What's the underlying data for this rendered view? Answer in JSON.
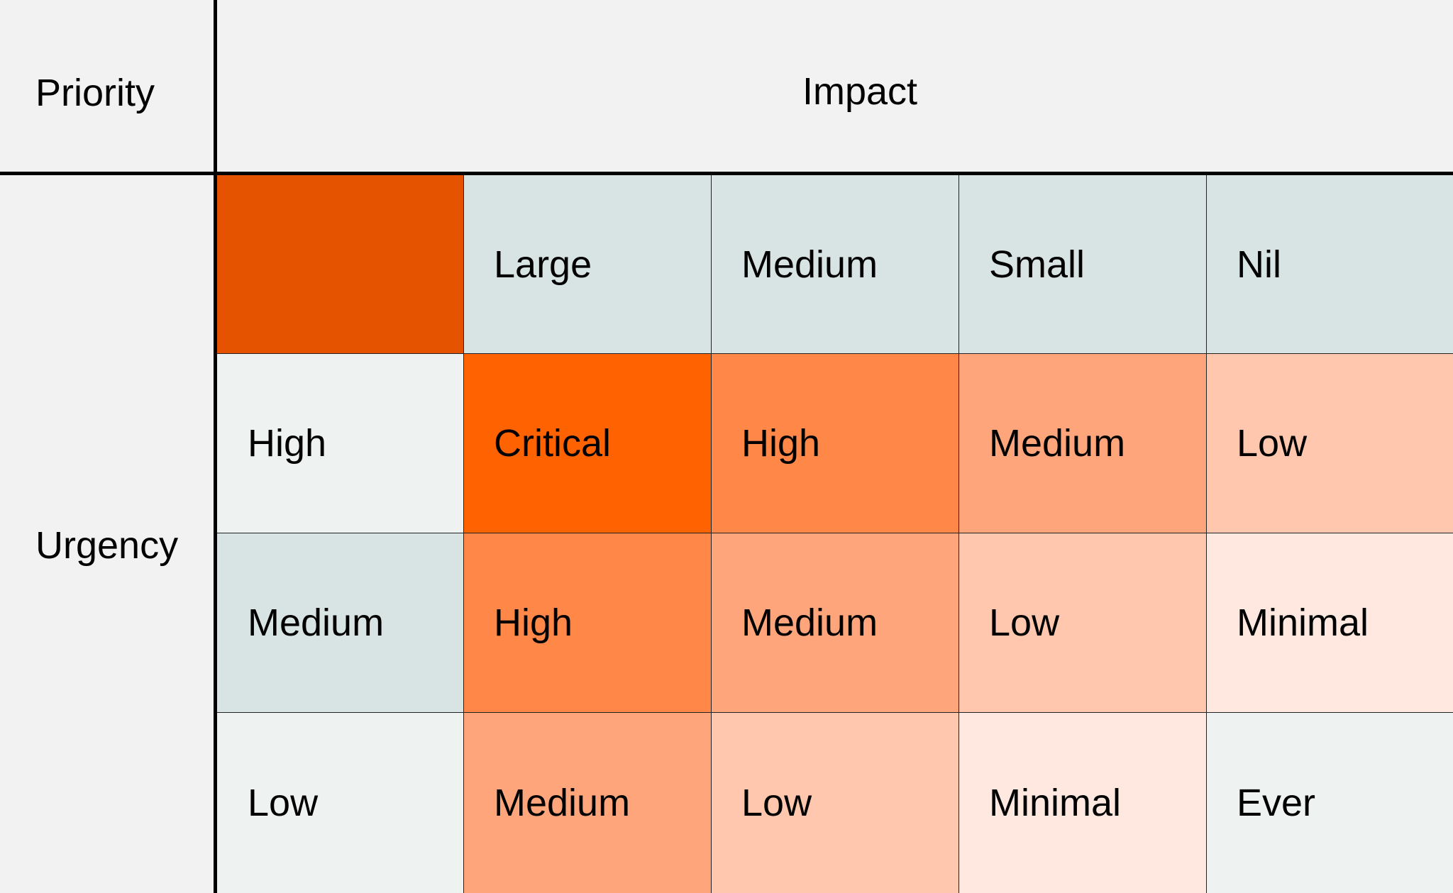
{
  "corner_label": "Priority",
  "impact_label": "Impact",
  "urgency_label": "Urgency",
  "colors": {
    "corner": "#e55300",
    "header_bg": "#d8e3e3",
    "row_light": "#eef3f2",
    "critical": "#ff6200",
    "high": "#ff8747",
    "medium": "#ffa57b",
    "low": "#ffc7ae",
    "minimal": "#ffe8df",
    "ever": "#eef3f2"
  },
  "impact_headers": [
    "Large",
    "Medium",
    "Small",
    "Nil"
  ],
  "rows": [
    {
      "urgency": "High",
      "cells": [
        "Critical",
        "High",
        "Medium",
        "Low"
      ]
    },
    {
      "urgency": "Medium",
      "cells": [
        "High",
        "Medium",
        "Low",
        "Minimal"
      ]
    },
    {
      "urgency": "Low",
      "cells": [
        "Medium",
        "Low",
        "Minimal",
        "Ever"
      ]
    }
  ]
}
